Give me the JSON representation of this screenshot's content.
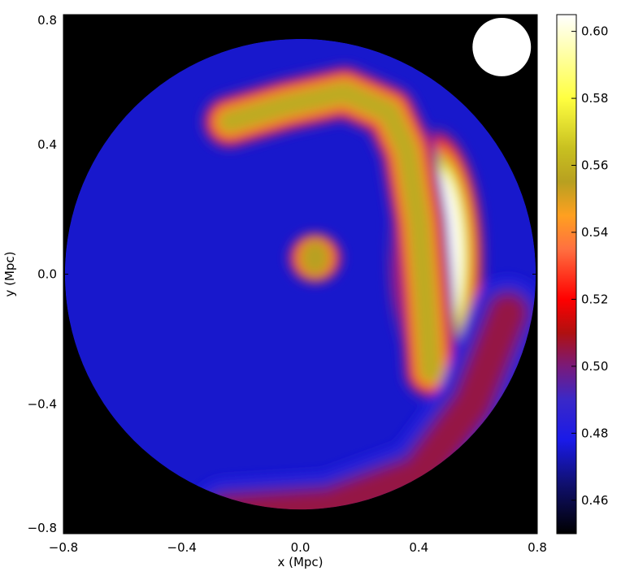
{
  "chart_data": {
    "type": "heatmap",
    "title": "",
    "xlabel": "x (Mpc)",
    "ylabel": "y (Mpc)",
    "xlim": [
      -0.8,
      0.8
    ],
    "ylim": [
      -0.8,
      0.8
    ],
    "x_ticks": [
      -0.8,
      -0.4,
      0.0,
      0.4,
      0.8
    ],
    "y_ticks": [
      -0.8,
      -0.4,
      0.0,
      0.4,
      0.8
    ],
    "x_tick_labels": [
      "−0.8",
      "−0.4",
      "0.0",
      "0.4",
      "0.8"
    ],
    "y_tick_labels": [
      "−0.8",
      "−0.4",
      "0.0",
      "0.4",
      "0.8"
    ],
    "colorbar": {
      "range": [
        0.45,
        0.605
      ],
      "ticks": [
        0.46,
        0.48,
        0.5,
        0.52,
        0.54,
        0.56,
        0.58,
        0.6
      ],
      "tick_labels": [
        "0.46",
        "0.48",
        "0.50",
        "0.52",
        "0.54",
        "0.56",
        "0.58",
        "0.60"
      ],
      "colormap": [
        {
          "value": 0.45,
          "color": "#000000"
        },
        {
          "value": 0.465,
          "color": "#101070"
        },
        {
          "value": 0.478,
          "color": "#1a1ae8"
        },
        {
          "value": 0.49,
          "color": "#3a28c8"
        },
        {
          "value": 0.5,
          "color": "#7a1a7a"
        },
        {
          "value": 0.51,
          "color": "#b01010"
        },
        {
          "value": 0.52,
          "color": "#ff0000"
        },
        {
          "value": 0.535,
          "color": "#ff7040"
        },
        {
          "value": 0.545,
          "color": "#ffa020"
        },
        {
          "value": 0.555,
          "color": "#b8a020"
        },
        {
          "value": 0.565,
          "color": "#c8c020"
        },
        {
          "value": 0.58,
          "color": "#ffff40"
        },
        {
          "value": 0.605,
          "color": "#ffffff"
        }
      ]
    },
    "region": {
      "shape": "disk",
      "center": [
        0.0,
        0.0
      ],
      "radius": 0.795
    },
    "background_value": 0.475,
    "features": [
      {
        "name": "bright-lobe",
        "kind": "ellipse",
        "center": [
          0.46,
          0.05
        ],
        "size": [
          0.11,
          0.32
        ],
        "peak": 0.605
      },
      {
        "name": "arc",
        "kind": "polyline",
        "points": [
          [
            -0.24,
            0.47
          ],
          [
            -0.05,
            0.52
          ],
          [
            0.15,
            0.56
          ],
          [
            0.3,
            0.5
          ],
          [
            0.36,
            0.38
          ],
          [
            0.4,
            0.16
          ],
          [
            0.42,
            -0.05
          ],
          [
            0.44,
            -0.3
          ]
        ],
        "width": 0.11,
        "peak": 0.558
      },
      {
        "name": "small-blob",
        "kind": "ellipse",
        "center": [
          0.05,
          0.05
        ],
        "size": [
          0.065,
          0.065
        ],
        "peak": 0.555
      },
      {
        "name": "south-rim",
        "kind": "polyline",
        "points": [
          [
            -0.25,
            -0.74
          ],
          [
            0.1,
            -0.72
          ],
          [
            0.4,
            -0.62
          ],
          [
            0.58,
            -0.4
          ],
          [
            0.7,
            -0.12
          ]
        ],
        "width": 0.14,
        "peak": 0.505
      }
    ],
    "marker": {
      "shape": "circle",
      "color": "#ffffff",
      "position": [
        0.68,
        0.7
      ],
      "radius": 0.09
    },
    "grid": false,
    "legend": "none"
  }
}
